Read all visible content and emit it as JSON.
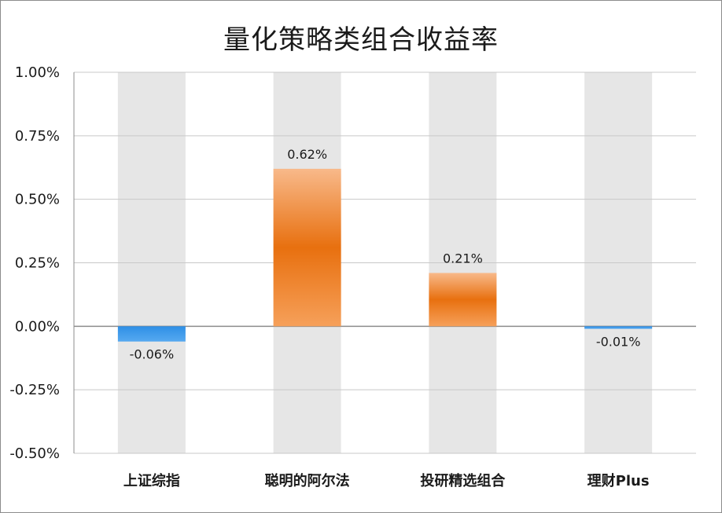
{
  "chart_data": {
    "type": "bar",
    "title": "量化策略类组合收益率",
    "categories": [
      "上证综指",
      "聪明的阿尔法",
      "投研精选组合",
      "理财Plus"
    ],
    "values": [
      -0.06,
      0.62,
      0.21,
      -0.01
    ],
    "data_labels": [
      "-0.06%",
      "0.62%",
      "0.21%",
      "-0.01%"
    ],
    "ylim": [
      -0.5,
      1.0
    ],
    "yticks": [
      1.0,
      0.75,
      0.5,
      0.25,
      0.0,
      -0.25,
      -0.5
    ],
    "ytick_labels": [
      "1.00%",
      "0.75%",
      "0.50%",
      "0.25%",
      "0.00%",
      "-0.25%",
      "-0.50%"
    ],
    "grid": true,
    "legend": "none",
    "colors": {
      "positive": "#e8700f",
      "positive_light": "#f8b98a",
      "negative": "#2e8fe6",
      "band": "#e6e6e6",
      "grid": "#c8c8c8",
      "axis": "#8c8c8c"
    }
  }
}
